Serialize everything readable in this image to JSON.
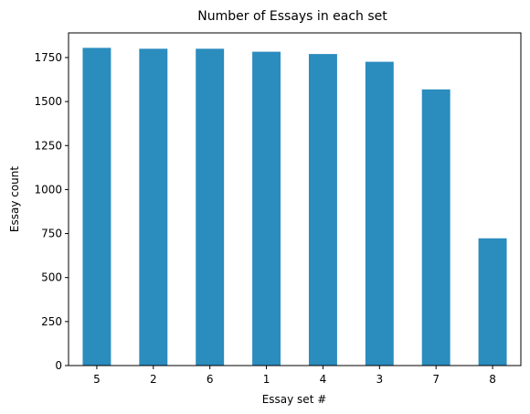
{
  "chart_data": {
    "type": "bar",
    "title": "Number of Essays in each set",
    "xlabel": "Essay set #",
    "ylabel": "Essay count",
    "categories": [
      "5",
      "2",
      "6",
      "1",
      "4",
      "3",
      "7",
      "8"
    ],
    "values": [
      1805,
      1800,
      1800,
      1783,
      1770,
      1726,
      1569,
      723
    ],
    "ylim": [
      0,
      1890
    ],
    "yticks": [
      0,
      250,
      500,
      750,
      1000,
      1250,
      1500,
      1750
    ],
    "bar_color": "#2b8cbe",
    "grid": false,
    "legend": "none"
  }
}
